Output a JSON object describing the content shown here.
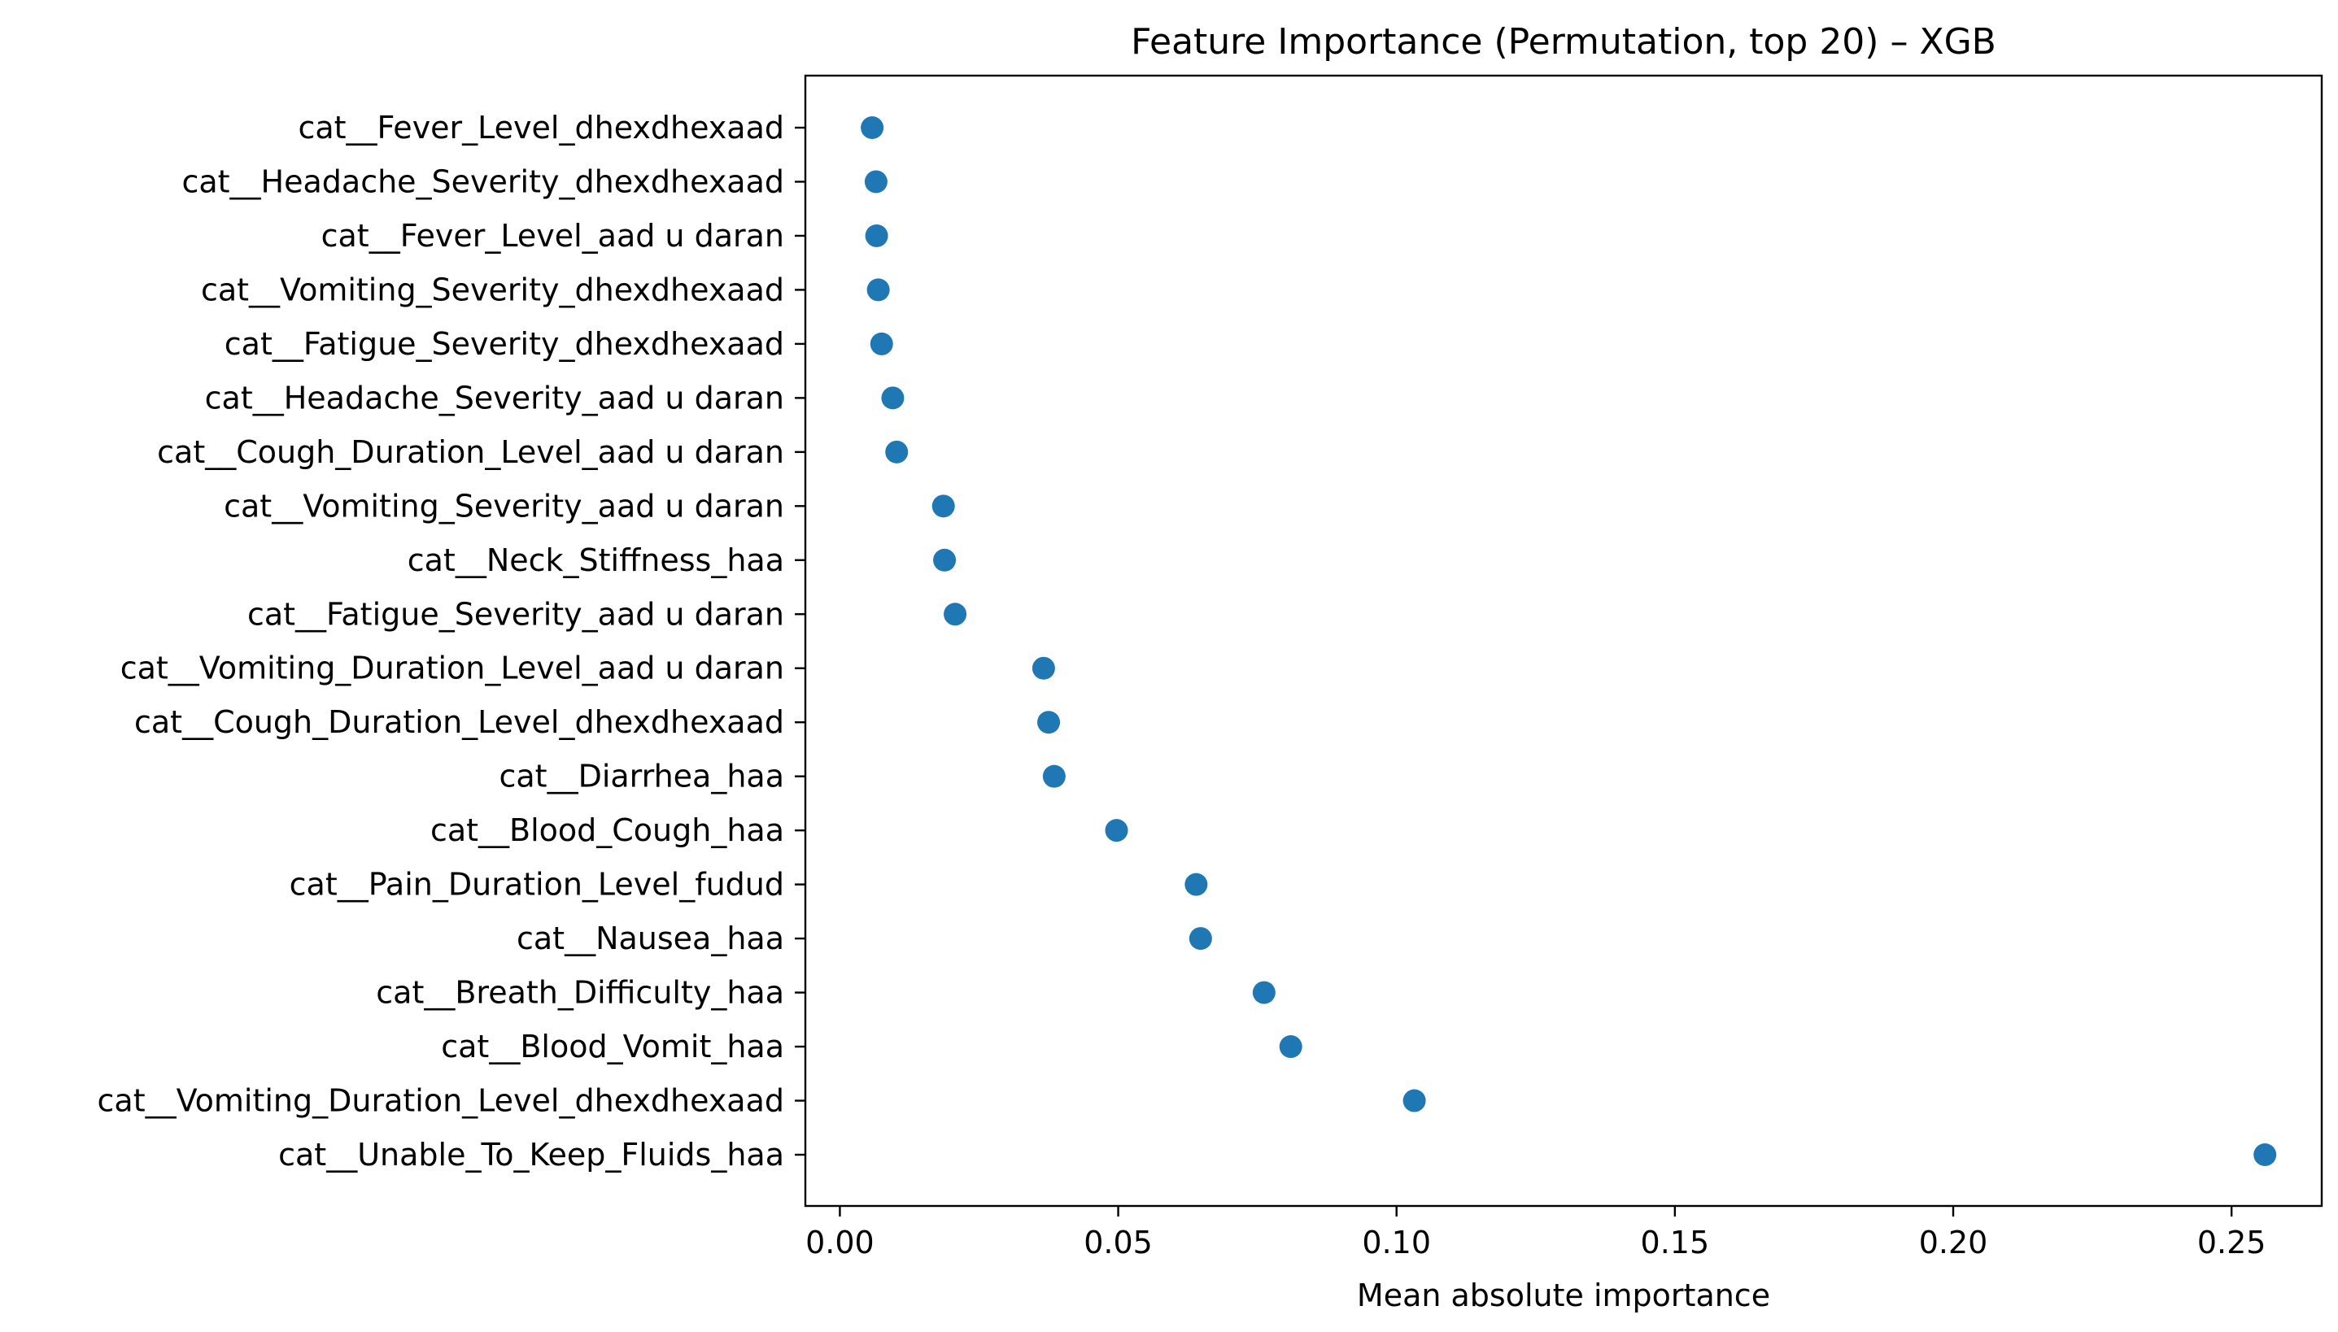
{
  "chart_data": {
    "type": "scatter",
    "title": "Feature Importance (Permutation, top 20) – XGB",
    "xlabel": "Mean absolute importance",
    "ylabel": "",
    "xlim": [
      -0.0062,
      0.2662
    ],
    "xticks": [
      0.0,
      0.05,
      0.1,
      0.15,
      0.2,
      0.25
    ],
    "xtick_labels": [
      "0.00",
      "0.05",
      "0.10",
      "0.15",
      "0.20",
      "0.25"
    ],
    "grid": false,
    "legend": "none",
    "color": "#1f77b4",
    "categories": [
      "cat__Fever_Level_dhexdhexaad",
      "cat__Headache_Severity_dhexdhexaad",
      "cat__Fever_Level_aad u daran",
      "cat__Vomiting_Severity_dhexdhexaad",
      "cat__Fatigue_Severity_dhexdhexaad",
      "cat__Headache_Severity_aad u daran",
      "cat__Cough_Duration_Level_aad u daran",
      "cat__Vomiting_Severity_aad u daran",
      "cat__Neck_Stiffness_haa",
      "cat__Fatigue_Severity_aad u daran",
      "cat__Vomiting_Duration_Level_aad u daran",
      "cat__Cough_Duration_Level_dhexdhexaad",
      "cat__Diarrhea_haa",
      "cat__Blood_Cough_haa",
      "cat__Pain_Duration_Level_fudud",
      "cat__Nausea_haa",
      "cat__Breath_Difficulty_haa",
      "cat__Blood_Vomit_haa",
      "cat__Vomiting_Duration_Level_dhexdhexaad",
      "cat__Unable_To_Keep_Fluids_haa"
    ],
    "values": [
      0.0058,
      0.0065,
      0.0066,
      0.0069,
      0.0075,
      0.0095,
      0.0102,
      0.0186,
      0.0188,
      0.0207,
      0.0366,
      0.0375,
      0.0385,
      0.0497,
      0.064,
      0.0648,
      0.0762,
      0.081,
      0.1032,
      0.256
    ]
  }
}
